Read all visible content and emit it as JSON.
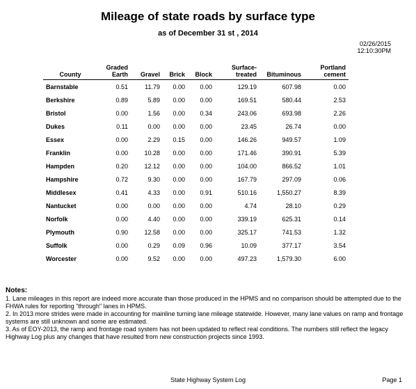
{
  "report": {
    "title": "Mileage of state roads by surface type",
    "subtitle": "as of December 31 st , 2014",
    "date": "02/26/2015",
    "time": "12:10:30PM"
  },
  "table": {
    "columns": {
      "county": "County",
      "graded": [
        "Graded",
        "Earth"
      ],
      "gravel": "Gravel",
      "brick": "Brick",
      "block": "Block",
      "surface": [
        "Surface-",
        "treated"
      ],
      "bituminous": "Bituminous",
      "portland": [
        "Portland",
        "cement"
      ]
    },
    "rows": [
      {
        "county": "Barnstable",
        "graded": "0.51",
        "gravel": "11.79",
        "brick": "0.00",
        "block": "0.00",
        "surface": "129.19",
        "bituminous": "607.98",
        "portland": "0.00"
      },
      {
        "county": "Berkshire",
        "graded": "0.89",
        "gravel": "5.89",
        "brick": "0.00",
        "block": "0.00",
        "surface": "169.51",
        "bituminous": "580.44",
        "portland": "2.53"
      },
      {
        "county": "Bristol",
        "graded": "0.00",
        "gravel": "1.56",
        "brick": "0.00",
        "block": "0.34",
        "surface": "243.06",
        "bituminous": "693.98",
        "portland": "2.26"
      },
      {
        "county": "Dukes",
        "graded": "0.11",
        "gravel": "0.00",
        "brick": "0.00",
        "block": "0.00",
        "surface": "23.45",
        "bituminous": "26.74",
        "portland": "0.00"
      },
      {
        "county": "Essex",
        "graded": "0.00",
        "gravel": "2.29",
        "brick": "0.15",
        "block": "0.00",
        "surface": "146.26",
        "bituminous": "949.57",
        "portland": "1.09"
      },
      {
        "county": "Franklin",
        "graded": "0.00",
        "gravel": "10.28",
        "brick": "0.00",
        "block": "0.00",
        "surface": "171.46",
        "bituminous": "390.91",
        "portland": "5.39"
      },
      {
        "county": "Hampden",
        "graded": "0.20",
        "gravel": "12.12",
        "brick": "0.00",
        "block": "0.00",
        "surface": "104.00",
        "bituminous": "866.52",
        "portland": "1.01"
      },
      {
        "county": "Hampshire",
        "graded": "0.72",
        "gravel": "9.30",
        "brick": "0.00",
        "block": "0.00",
        "surface": "167.79",
        "bituminous": "297.09",
        "portland": "0.06"
      },
      {
        "county": "Middlesex",
        "graded": "0.41",
        "gravel": "4.33",
        "brick": "0.00",
        "block": "0.91",
        "surface": "510.16",
        "bituminous": "1,550.27",
        "portland": "8.39"
      },
      {
        "county": "Nantucket",
        "graded": "0.00",
        "gravel": "0.00",
        "brick": "0.00",
        "block": "0.00",
        "surface": "4.74",
        "bituminous": "28.10",
        "portland": "0.29"
      },
      {
        "county": "Norfolk",
        "graded": "0.00",
        "gravel": "4.40",
        "brick": "0.00",
        "block": "0.00",
        "surface": "339.19",
        "bituminous": "625.31",
        "portland": "0.14"
      },
      {
        "county": "Plymouth",
        "graded": "0.90",
        "gravel": "12.58",
        "brick": "0.00",
        "block": "0.00",
        "surface": "325.17",
        "bituminous": "741.53",
        "portland": "1.32"
      },
      {
        "county": "Suffolk",
        "graded": "0.00",
        "gravel": "0.29",
        "brick": "0.09",
        "block": "0.96",
        "surface": "10.09",
        "bituminous": "377.17",
        "portland": "3.54"
      },
      {
        "county": "Worcester",
        "graded": "0.00",
        "gravel": "9.52",
        "brick": "0.00",
        "block": "0.00",
        "surface": "497.23",
        "bituminous": "1,579.30",
        "portland": "6.00"
      }
    ]
  },
  "notes": {
    "heading": "Notes:",
    "items": [
      "1. Lane mileages in this report are indeed more accurate than those produced in the HPMS and no comparison should be attempted due to the FHWA rules for reporting \"through\" lanes in HPMS.",
      "2. In 2013 more strides were made in accounting for mainline turning lane mileage statewide. However, many lane values on ramp and frontage systems are still unknown and some are estimated.",
      "3. As of EOY-2013, the ramp and frontage road system has not been updated to reflect real conditions. The numbers still reflect the legacy Highway Log plus any changes that have resulted from new construction projects since 1993."
    ]
  },
  "footer": {
    "center": "State Highway System Log",
    "page": "Page 1"
  }
}
